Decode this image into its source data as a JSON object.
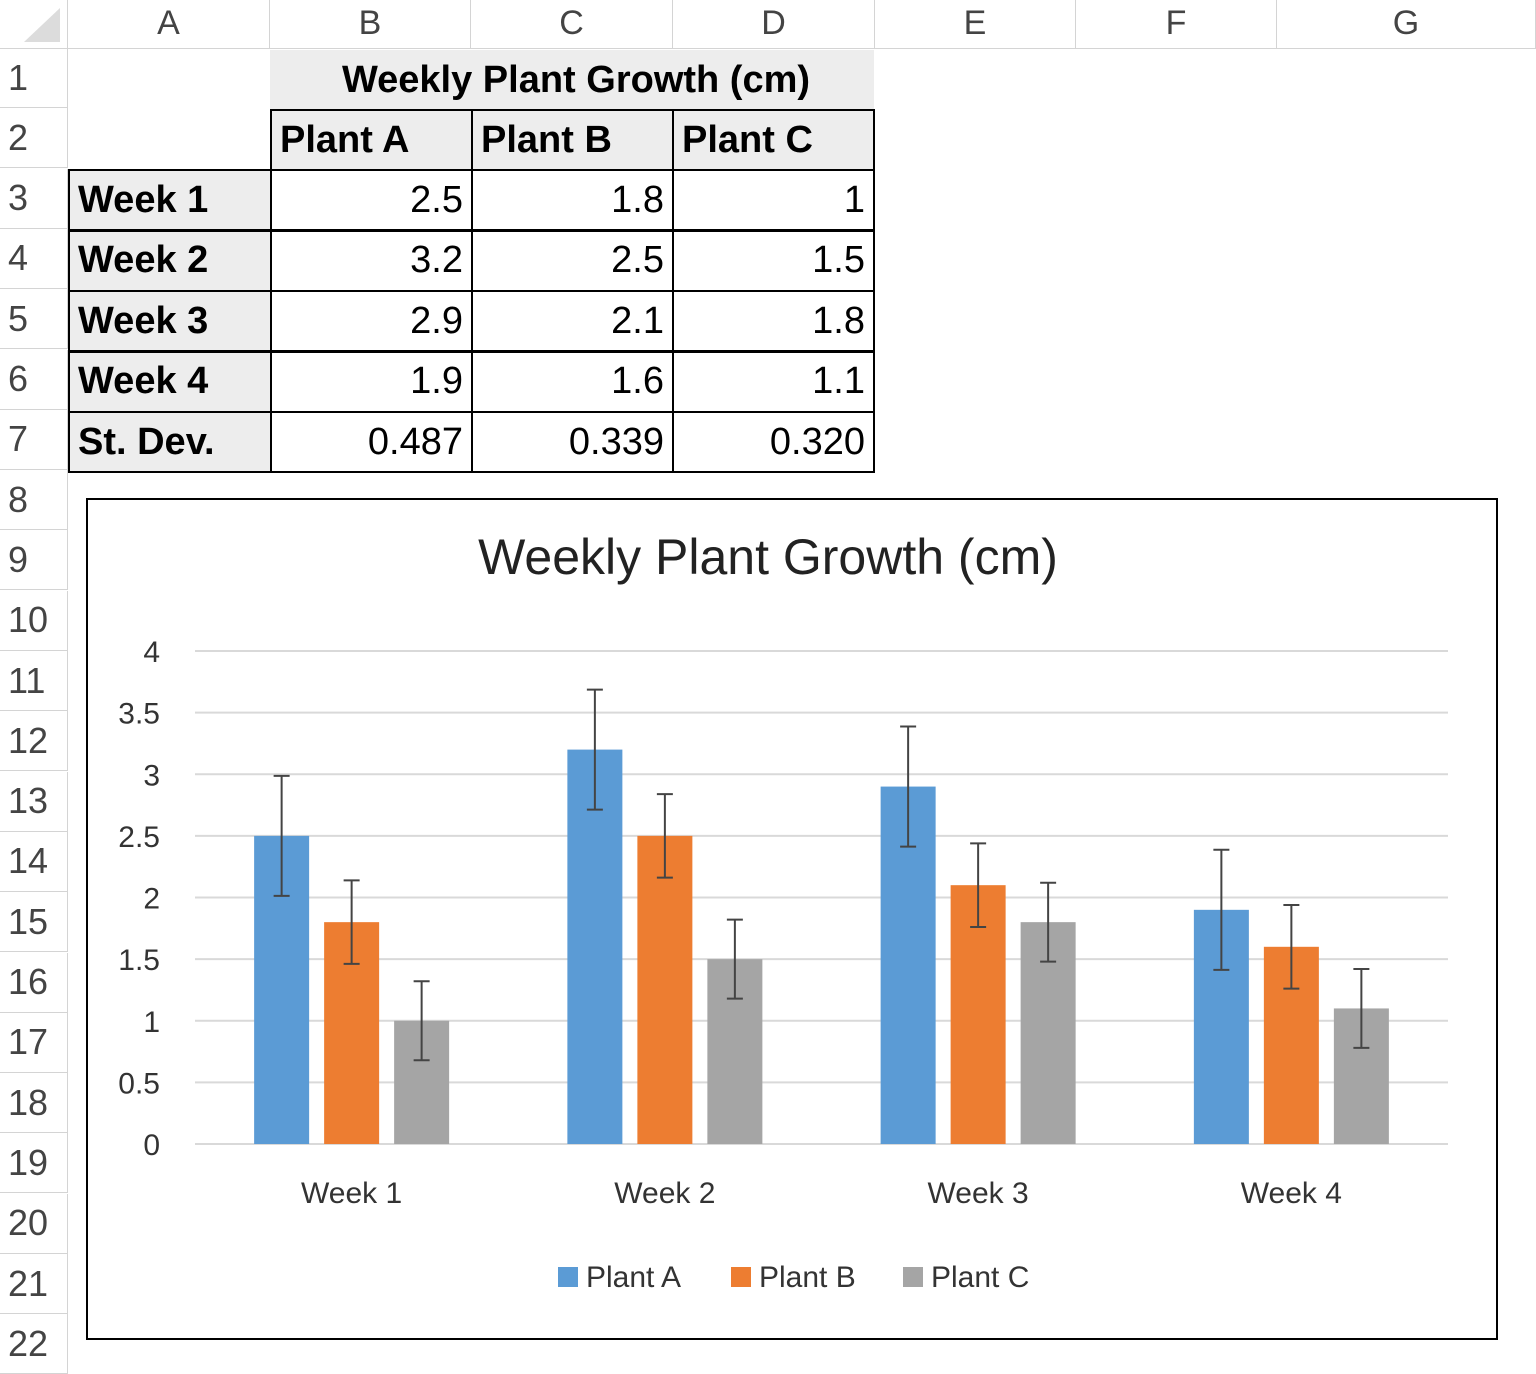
{
  "columns": [
    "A",
    "B",
    "C",
    "D",
    "E",
    "F",
    "G"
  ],
  "rows": [
    "1",
    "2",
    "3",
    "4",
    "5",
    "6",
    "7",
    "8",
    "9",
    "10",
    "11",
    "12",
    "13",
    "14",
    "15",
    "16",
    "17",
    "18",
    "19",
    "20",
    "21",
    "22"
  ],
  "table": {
    "title": "Weekly Plant Growth (cm)",
    "headers": [
      "Plant A",
      "Plant B",
      "Plant C"
    ],
    "rows": [
      {
        "label": "Week 1",
        "values": [
          "2.5",
          "1.8",
          "1"
        ]
      },
      {
        "label": "Week 2",
        "values": [
          "3.2",
          "2.5",
          "1.5"
        ]
      },
      {
        "label": "Week 3",
        "values": [
          "2.9",
          "2.1",
          "1.8"
        ]
      },
      {
        "label": "Week 4",
        "values": [
          "1.9",
          "1.6",
          "1.1"
        ]
      },
      {
        "label": "St. Dev.",
        "values": [
          "0.487",
          "0.339",
          "0.320"
        ]
      }
    ]
  },
  "chart_data": {
    "type": "bar",
    "title": "Weekly Plant Growth (cm)",
    "categories": [
      "Week 1",
      "Week 2",
      "Week 3",
      "Week 4"
    ],
    "series": [
      {
        "name": "Plant A",
        "color": "#5b9bd5",
        "values": [
          2.5,
          3.2,
          2.9,
          1.9
        ],
        "error": 0.487
      },
      {
        "name": "Plant B",
        "color": "#ed7d31",
        "values": [
          1.8,
          2.5,
          2.1,
          1.6
        ],
        "error": 0.339
      },
      {
        "name": "Plant C",
        "color": "#a5a5a5",
        "values": [
          1.0,
          1.5,
          1.8,
          1.1
        ],
        "error": 0.32
      }
    ],
    "ylim": [
      0,
      4
    ],
    "yticks": [
      "0",
      "0.5",
      "1",
      "1.5",
      "2",
      "2.5",
      "3",
      "3.5",
      "4"
    ],
    "grid": true,
    "legend": "bottom"
  }
}
